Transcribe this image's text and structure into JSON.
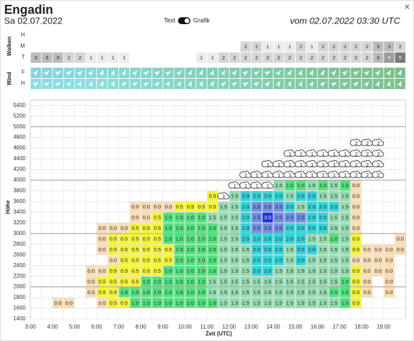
{
  "header": {
    "title": "Engadin",
    "date": "Sa 02.07.2022",
    "toggle_left": "Text",
    "toggle_right": "Grafik",
    "run": "vom 02.07.2022 03:30 UTC",
    "close": "×"
  },
  "clouds": {
    "label": "Wolken",
    "rows": [
      {
        "name": "H",
        "values": [
          null,
          null,
          null,
          null,
          null,
          null,
          null,
          null,
          null,
          null,
          null,
          null,
          null,
          null,
          null,
          null,
          null,
          null,
          null,
          null,
          null,
          null,
          null,
          null,
          null,
          null,
          null,
          null,
          null,
          null,
          null,
          null,
          null,
          null
        ]
      },
      {
        "name": "M",
        "values": [
          null,
          null,
          null,
          null,
          null,
          null,
          null,
          null,
          null,
          null,
          null,
          null,
          null,
          null,
          null,
          null,
          null,
          null,
          null,
          2,
          2,
          1,
          1,
          1,
          2,
          1,
          2,
          2,
          2,
          2,
          2,
          3,
          3,
          2
        ]
      },
      {
        "name": "T",
        "values": [
          3,
          3,
          3,
          2,
          2,
          1,
          1,
          1,
          1,
          null,
          null,
          null,
          null,
          null,
          null,
          1,
          1,
          2,
          2,
          2,
          2,
          2,
          2,
          2,
          2,
          2,
          2,
          2,
          2,
          2,
          2,
          3,
          4,
          5
        ]
      }
    ],
    "colors": {
      "1": "#ececec",
      "2": "#d6d6d6",
      "3": "#bcbcbc",
      "4": "#9c9c9c",
      "5": "#7a7a7a"
    }
  },
  "wind": {
    "label": "Wind",
    "rows": [
      "F",
      "H"
    ]
  },
  "grid": {
    "y_label": "Höhe",
    "x_label": "Zeit (UTC)",
    "ylim": [
      1400,
      5500
    ],
    "yticks": [
      1400,
      1600,
      1800,
      2000,
      2200,
      2400,
      2600,
      2800,
      3000,
      3200,
      3400,
      3600,
      3800,
      4000,
      4200,
      4400,
      4600,
      4800,
      5000,
      5200,
      5400
    ],
    "x_tick_labels": [
      "3:00",
      "4:00",
      "5:00",
      "6:00",
      "7:00",
      "8:00",
      "9:00",
      "10:00",
      "11:00",
      "12:00",
      "13:00",
      "14:00",
      "15:00",
      "16:00",
      "17:00",
      "18:00",
      "19:00"
    ],
    "colors": {
      "0.0": "#f8dcb4",
      "0.5": "#f3f33a",
      "1.0": "#55e07e",
      "1.5": "#96dbb1",
      "2.0": "#36d3da",
      "2.5": "#7190e4",
      "3.0": "#2530e0"
    },
    "rows": [
      [
        null,
        null,
        "0.0",
        "0.0",
        null,
        null,
        "0.0",
        "0.5",
        "0.5",
        "1.0",
        "1.0",
        "1.0",
        "1.0",
        "1.0",
        "1.0",
        "1.0",
        "1.0",
        "1.5",
        "1.5",
        "1.5",
        "1.5",
        "1.5",
        "1.5",
        "1.5",
        "1.5",
        "1.5",
        "1.5",
        "1.5",
        "1.0",
        "0.5",
        null,
        null,
        null,
        null
      ],
      [
        null,
        null,
        null,
        null,
        null,
        "0.0",
        "0.5",
        "0.5",
        "1.0",
        "1.0",
        "1.0",
        "1.0",
        "1.0",
        "1.0",
        "1.0",
        "1.0",
        "1.5",
        "1.5",
        "1.5",
        "1.5",
        "1.5",
        "1.5",
        "1.5",
        "1.5",
        "1.5",
        "1.5",
        "1.5",
        "1.0",
        "1.0",
        "0.5",
        "0.0",
        null,
        "0.0",
        null
      ],
      [
        null,
        null,
        null,
        null,
        null,
        "0.0",
        "0.5",
        "0.5",
        "0.5",
        "0.5",
        "1.0",
        "1.0",
        "1.0",
        "1.0",
        "1.0",
        "1.0",
        "1.5",
        "1.5",
        "1.5",
        "1.5",
        "1.5",
        "1.5",
        "1.5",
        "1.5",
        "1.5",
        "1.5",
        "1.5",
        "1.5",
        "1.0",
        "0.5",
        "0.0",
        null,
        "0.0",
        null
      ],
      [
        null,
        null,
        null,
        null,
        null,
        "0.0",
        "0.0",
        "0.5",
        "0.5",
        "0.5",
        "0.5",
        "0.5",
        "1.0",
        "1.0",
        "1.0",
        "1.0",
        "1.0",
        "1.5",
        "1.5",
        "1.5",
        "2.0",
        "2.0",
        "1.5",
        "1.5",
        "1.5",
        "1.5",
        "1.5",
        "1.5",
        "1.5",
        "0.5",
        "0.0",
        "0.0",
        "0.0",
        null
      ],
      [
        null,
        null,
        null,
        null,
        null,
        null,
        null,
        "0.0",
        "0.5",
        "0.5",
        "0.5",
        "0.5",
        "0.5",
        "1.0",
        "1.0",
        "1.0",
        "1.0",
        "1.5",
        "1.5",
        "1.5",
        "2.0",
        "2.0",
        "2.0",
        "1.5",
        "2.0",
        "1.5",
        "1.5",
        "1.5",
        "1.5",
        "0.0",
        "0.0",
        "0.0",
        "0.0",
        null
      ],
      [
        null,
        null,
        null,
        null,
        null,
        null,
        "0.0",
        "0.5",
        "0.5",
        "0.5",
        "0.5",
        "0.5",
        "0.5",
        "1.0",
        "1.0",
        "1.0",
        "1.0",
        "1.5",
        "1.5",
        "1.5",
        "2.0",
        "2.0",
        "2.0",
        "1.5",
        "2.0",
        "2.0",
        "1.5",
        "1.5",
        "1.5",
        "0.5",
        "0.0",
        "0.0",
        "0.0",
        "0.0"
      ],
      [
        null,
        null,
        null,
        null,
        null,
        null,
        "0.0",
        "0.5",
        "0.5",
        "0.5",
        "0.5",
        "0.5",
        "1.0",
        "1.0",
        "1.0",
        "1.0",
        "1.0",
        "1.5",
        "1.5",
        "2.0",
        "2.0",
        "2.0",
        "2.0",
        "2.0",
        "2.0",
        "1.5",
        "1.5",
        "1.0",
        "1.5",
        "0.5",
        null,
        null,
        null,
        "0.0"
      ],
      [
        null,
        null,
        null,
        null,
        null,
        null,
        "0.0",
        "0.0",
        "0.0",
        "0.5",
        "0.5",
        "0.5",
        "1.0",
        "1.0",
        "1.0",
        "1.0",
        "1.0",
        "1.5",
        "1.5",
        "2.0",
        "2.5",
        "2.5",
        "2.5",
        "2.0",
        "2.0",
        "2.0",
        "2.0",
        "1.5",
        "1.5",
        "0.0",
        null,
        null,
        null,
        null
      ],
      [
        null,
        null,
        null,
        null,
        null,
        null,
        null,
        null,
        null,
        "0.0",
        "0.0",
        "0.5",
        "1.0",
        "1.0",
        "1.0",
        "1.0",
        "1.5",
        "1.5",
        "1.5",
        "2.0",
        "2.5",
        "3.0",
        "2.5",
        "2.5",
        "2.5",
        "2.0",
        "2.0",
        "1.5",
        "1.5",
        "0.0",
        null,
        null,
        null,
        null
      ],
      [
        null,
        null,
        null,
        null,
        null,
        null,
        null,
        null,
        null,
        "0.0",
        "0.0",
        "0.0",
        "0.0",
        "0.5",
        "0.5",
        "0.5",
        "0.5",
        "1.5",
        "1.5",
        "2.0",
        "2.5",
        "2.5",
        "2.5",
        "2.0",
        "1.5",
        "2.0",
        "2.0",
        "2.0",
        "1.5",
        "0.0",
        null,
        null,
        null,
        null
      ],
      [
        null,
        null,
        null,
        null,
        null,
        null,
        null,
        null,
        null,
        null,
        null,
        null,
        null,
        null,
        null,
        null,
        "0.5",
        {
          "cloud": 1
        },
        "1.5",
        "2.0",
        "2.0",
        "2.0",
        "2.0",
        "1.5",
        "2.0",
        "2.0",
        "1.5",
        "1.5",
        "1.5",
        "0.0",
        null,
        null,
        null,
        null
      ],
      [
        null,
        null,
        null,
        null,
        null,
        null,
        null,
        null,
        null,
        null,
        null,
        null,
        null,
        null,
        null,
        null,
        null,
        null,
        {
          "cloud": 1
        },
        {
          "cloud": 1
        },
        {
          "cloud": 1
        },
        {
          "cloud": 1
        },
        "1.5",
        "1.0",
        "1.0",
        "1.5",
        "1.0",
        "1.5",
        "1.0",
        "0.0",
        null,
        null,
        null,
        null
      ],
      [
        null,
        null,
        null,
        null,
        null,
        null,
        null,
        null,
        null,
        null,
        null,
        null,
        null,
        null,
        null,
        null,
        null,
        null,
        null,
        {
          "cloud": 1
        },
        {
          "cloud": 1
        },
        {
          "cloud": 1
        },
        {
          "cloud": 1
        },
        {
          "cloud": 1
        },
        {
          "cloud": 1
        },
        {
          "cloud": 1
        },
        {
          "cloud": 1
        },
        {
          "cloud": 1
        },
        {
          "cloud": 1
        },
        {
          "cloud": 2
        },
        {
          "cloud": 2
        },
        {
          "cloud": 2
        },
        null,
        null
      ],
      [
        null,
        null,
        null,
        null,
        null,
        null,
        null,
        null,
        null,
        null,
        null,
        null,
        null,
        null,
        null,
        null,
        null,
        null,
        null,
        null,
        null,
        {
          "cloud": 1
        },
        {
          "cloud": 1
        },
        {
          "cloud": 1
        },
        {
          "cloud": 1
        },
        {
          "cloud": 1
        },
        {
          "cloud": 1
        },
        {
          "cloud": 1
        },
        {
          "cloud": 1
        },
        {
          "cloud": 2
        },
        {
          "cloud": 2
        },
        {
          "cloud": 2
        },
        null,
        null
      ],
      [
        null,
        null,
        null,
        null,
        null,
        null,
        null,
        null,
        null,
        null,
        null,
        null,
        null,
        null,
        null,
        null,
        null,
        null,
        null,
        null,
        null,
        null,
        null,
        {
          "cloud": 1
        },
        {
          "cloud": 1
        },
        {
          "cloud": 1
        },
        {
          "cloud": 1
        },
        {
          "cloud": 1
        },
        {
          "cloud": 1
        },
        {
          "cloud": 2
        },
        {
          "cloud": 2
        },
        {
          "cloud": 2
        },
        null,
        null
      ],
      [
        null,
        null,
        null,
        null,
        null,
        null,
        null,
        null,
        null,
        null,
        null,
        null,
        null,
        null,
        null,
        null,
        null,
        null,
        null,
        null,
        null,
        null,
        null,
        null,
        null,
        null,
        null,
        null,
        null,
        {
          "cloud": 2
        },
        {
          "cloud": 2
        },
        {
          "cloud": 2
        },
        null,
        null
      ]
    ]
  }
}
